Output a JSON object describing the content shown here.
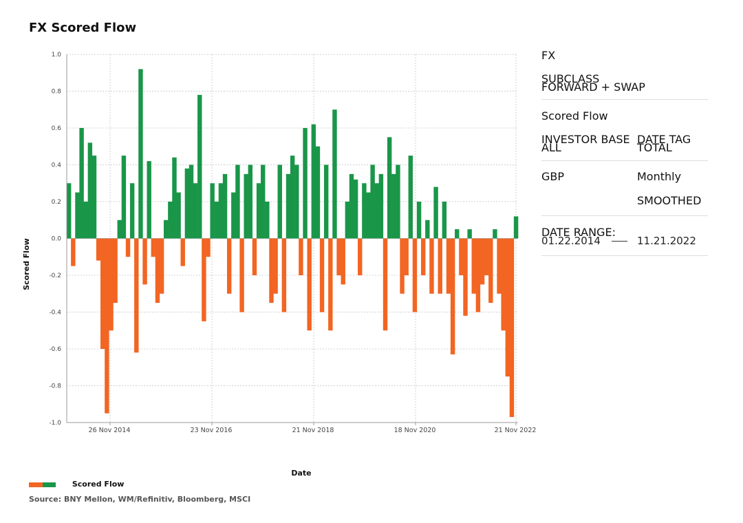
{
  "title": "FX Scored Flow",
  "colors": {
    "positive": "#1a9649",
    "negative": "#f26522",
    "grid": "#cccccc"
  },
  "chart_data": {
    "type": "bar",
    "title": "FX Scored Flow",
    "xlabel": "Date",
    "ylabel": "Scored Flow",
    "ylim": [
      -1.0,
      1.0
    ],
    "yticks": [
      "1.0",
      "0.8",
      "0.6",
      "0.4",
      "0.2",
      "0.0",
      "-0.2",
      "-0.4",
      "-0.6",
      "-0.8",
      "-1.0"
    ],
    "xticks": [
      "26 Nov 2014",
      "23 Nov 2016",
      "21 Nov 2018",
      "18 Nov 2020",
      "21 Nov 2022"
    ],
    "xrange": [
      "01.22.2014",
      "11.21.2022"
    ],
    "grid": true,
    "legend": "bottom-left",
    "series": [
      {
        "name": "Scored Flow",
        "x": [
          "2014-01",
          "2014-02",
          "2014-03",
          "2014-04",
          "2014-05",
          "2014-06",
          "2014-07",
          "2014-08",
          "2014-09",
          "2014-10",
          "2014-11",
          "2014-12",
          "2015-01",
          "2015-02",
          "2015-03",
          "2015-04",
          "2015-05",
          "2015-06",
          "2015-07",
          "2015-08",
          "2015-09",
          "2015-10",
          "2015-11",
          "2015-12",
          "2016-01",
          "2016-02",
          "2016-03",
          "2016-04",
          "2016-05",
          "2016-06",
          "2016-07",
          "2016-08",
          "2016-09",
          "2016-10",
          "2016-11",
          "2016-12",
          "2017-01",
          "2017-02",
          "2017-03",
          "2017-04",
          "2017-05",
          "2017-06",
          "2017-07",
          "2017-08",
          "2017-09",
          "2017-10",
          "2017-11",
          "2017-12",
          "2018-01",
          "2018-02",
          "2018-03",
          "2018-04",
          "2018-05",
          "2018-06",
          "2018-07",
          "2018-08",
          "2018-09",
          "2018-10",
          "2018-11",
          "2018-12",
          "2019-01",
          "2019-02",
          "2019-03",
          "2019-04",
          "2019-05",
          "2019-06",
          "2019-07",
          "2019-08",
          "2019-09",
          "2019-10",
          "2019-11",
          "2019-12",
          "2020-01",
          "2020-02",
          "2020-03",
          "2020-04",
          "2020-05",
          "2020-06",
          "2020-07",
          "2020-08",
          "2020-09",
          "2020-10",
          "2020-11",
          "2020-12",
          "2021-01",
          "2021-02",
          "2021-03",
          "2021-04",
          "2021-05",
          "2021-06",
          "2021-07",
          "2021-08",
          "2021-09",
          "2021-10",
          "2021-11",
          "2021-12",
          "2022-01",
          "2022-02",
          "2022-03",
          "2022-04",
          "2022-05",
          "2022-06",
          "2022-07",
          "2022-08",
          "2022-09",
          "2022-10",
          "2022-11"
        ],
        "values": [
          0.3,
          -0.15,
          0.25,
          0.6,
          0.2,
          0.52,
          0.45,
          -0.12,
          -0.6,
          -0.95,
          -0.5,
          -0.35,
          0.1,
          0.45,
          -0.1,
          0.3,
          -0.62,
          0.92,
          -0.25,
          0.42,
          -0.1,
          -0.35,
          -0.3,
          0.1,
          0.2,
          0.44,
          0.25,
          -0.15,
          0.38,
          0.4,
          0.3,
          0.78,
          -0.45,
          -0.1,
          0.3,
          0.2,
          0.3,
          0.35,
          -0.3,
          0.25,
          0.4,
          -0.4,
          0.35,
          0.4,
          -0.2,
          0.3,
          0.4,
          0.2,
          -0.35,
          -0.3,
          0.4,
          -0.4,
          0.35,
          0.45,
          0.4,
          -0.2,
          0.6,
          -0.5,
          0.62,
          0.5,
          -0.4,
          0.4,
          -0.5,
          0.7,
          -0.2,
          -0.25,
          0.2,
          0.35,
          0.32,
          -0.2,
          0.3,
          0.25,
          0.4,
          0.3,
          0.35,
          -0.5,
          0.55,
          0.35,
          0.4,
          -0.3,
          -0.2,
          0.45,
          -0.4,
          0.2,
          -0.2,
          0.1,
          -0.3,
          0.28,
          -0.3,
          0.2,
          -0.3,
          -0.63,
          0.05,
          -0.2,
          -0.42,
          0.05,
          -0.3,
          -0.4,
          -0.25,
          -0.2,
          -0.35,
          0.05,
          -0.3,
          -0.5,
          -0.75,
          -0.97,
          0.12
        ]
      }
    ]
  },
  "sidebar": {
    "asset": "FX",
    "subclass_label": "SUBCLASS",
    "subclass_value": "FORWARD + SWAP",
    "metric": "Scored Flow",
    "investor_base_label": "INVESTOR BASE",
    "investor_base_value": "ALL",
    "date_tag_label": "DATE TAG",
    "date_tag_value": "TOTAL",
    "currency": "GBP",
    "frequency": "Monthly",
    "frequency_note": "SMOOTHED",
    "date_range_label": "DATE RANGE:",
    "date_start": "01.22.2014",
    "date_end": "11.21.2022"
  },
  "legend": {
    "label": "Scored Flow"
  },
  "source": "Source: BNY Mellon, WM/Refinitiv, Bloomberg, MSCI"
}
